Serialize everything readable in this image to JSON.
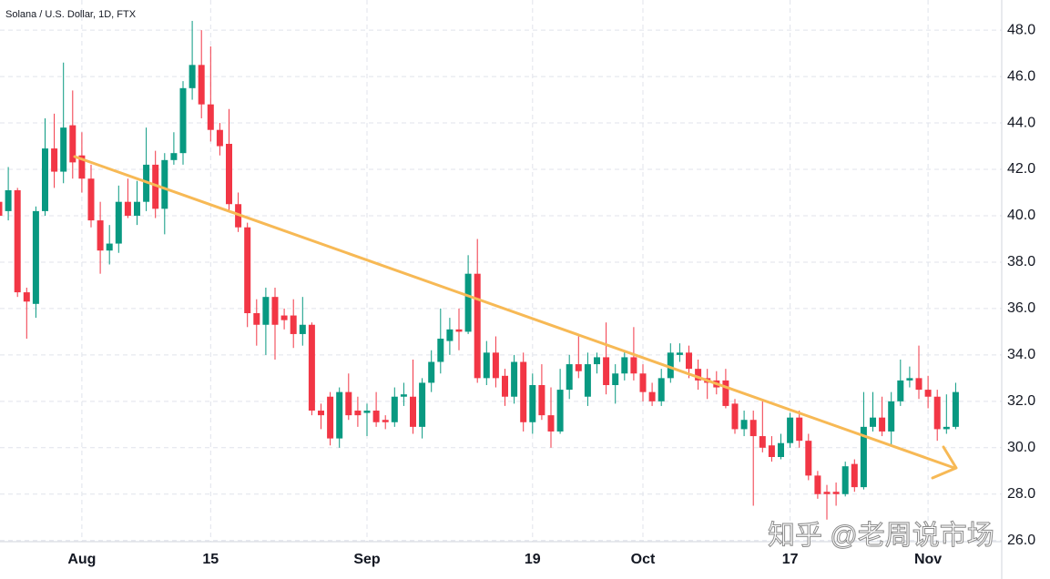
{
  "chart_data": {
    "type": "candlestick",
    "title": "Solana / U.S. Dollar, 1D, FTX",
    "watermark": "知乎 @老周说市场",
    "categories": [
      null,
      null,
      null,
      null,
      null,
      null,
      null,
      null,
      null,
      "Aug",
      null,
      null,
      null,
      null,
      null,
      null,
      null,
      null,
      null,
      null,
      null,
      null,
      null,
      "15",
      null,
      null,
      null,
      null,
      null,
      null,
      null,
      null,
      null,
      null,
      null,
      null,
      null,
      null,
      null,
      null,
      "Sep",
      null,
      null,
      null,
      null,
      null,
      null,
      null,
      null,
      null,
      null,
      null,
      null,
      null,
      null,
      null,
      null,
      null,
      "19",
      null,
      null,
      null,
      null,
      null,
      null,
      null,
      null,
      null,
      null,
      null,
      "Oct",
      null,
      null,
      null,
      null,
      null,
      null,
      null,
      null,
      null,
      null,
      null,
      null,
      null,
      null,
      null,
      "17",
      null,
      null,
      null,
      null,
      null,
      null,
      null,
      null,
      null,
      null,
      null,
      null,
      null,
      null,
      "Nov",
      null,
      null,
      null
    ],
    "ohlc": {
      "open": [
        40.6,
        40.2,
        41.1,
        36.7,
        36.2,
        40.2,
        42.9,
        41.9,
        43.9,
        42.6,
        41.6,
        39.8,
        38.5,
        38.8,
        40.6,
        40.0,
        40.6,
        42.2,
        40.3,
        42.4,
        42.7,
        45.5,
        46.5,
        44.8,
        43.7,
        43.1,
        40.5,
        39.5,
        35.8,
        35.3,
        36.5,
        35.7,
        35.7,
        34.9,
        35.3,
        31.6,
        32.2,
        30.4,
        32.4,
        31.6,
        31.5,
        31.6,
        31.2,
        31.1,
        32.2,
        32.2,
        30.9,
        32.8,
        33.7,
        34.6,
        35.1,
        35.0,
        37.5,
        33.0,
        34.1,
        33.1,
        32.2,
        33.7,
        31.1,
        32.7,
        31.4,
        30.7,
        32.5,
        33.6,
        32.2,
        33.6,
        33.9,
        32.7,
        33.2,
        33.9,
        33.2,
        32.4,
        32.0,
        33.0,
        34.0,
        34.1,
        33.4,
        33.0,
        32.9,
        32.9,
        31.9,
        30.8,
        31.2,
        30.5,
        30.1,
        29.6,
        30.2,
        31.3,
        30.3,
        28.8,
        28.1,
        28.1,
        28.0,
        29.3,
        28.3,
        30.9,
        31.3,
        30.7,
        32.0,
        32.9,
        33.0,
        32.5,
        32.2,
        30.8,
        30.9
      ],
      "high": [
        41.0,
        42.1,
        41.2,
        36.9,
        40.4,
        44.2,
        44.4,
        46.6,
        45.4,
        43.6,
        42.2,
        40.6,
        39.6,
        41.3,
        41.6,
        41.5,
        43.8,
        42.8,
        42.7,
        43.6,
        45.8,
        48.4,
        48.0,
        47.3,
        44.0,
        44.6,
        41.0,
        39.7,
        36.4,
        36.9,
        36.9,
        36.0,
        36.4,
        36.5,
        35.4,
        31.9,
        32.4,
        32.6,
        33.2,
        32.2,
        31.9,
        32.4,
        31.4,
        32.6,
        32.8,
        33.8,
        33.0,
        34.2,
        36.0,
        35.6,
        36.0,
        38.3,
        39.0,
        34.6,
        34.8,
        33.4,
        34.0,
        34.1,
        33.2,
        33.6,
        32.6,
        33.4,
        34.0,
        34.8,
        34.1,
        34.1,
        35.4,
        33.6,
        34.2,
        35.2,
        33.6,
        32.8,
        33.4,
        34.5,
        34.5,
        34.4,
        33.8,
        33.4,
        33.3,
        33.4,
        32.1,
        31.6,
        31.6,
        32.0,
        30.5,
        30.6,
        31.5,
        31.6,
        30.6,
        29.0,
        28.4,
        28.5,
        29.4,
        29.5,
        32.4,
        32.4,
        32.2,
        32.4,
        33.8,
        33.5,
        34.4,
        33.1,
        32.5,
        32.3,
        32.8
      ],
      "low": [
        40.0,
        39.8,
        36.5,
        34.7,
        35.6,
        40.0,
        41.2,
        41.4,
        41.6,
        41.0,
        39.5,
        37.5,
        37.9,
        38.4,
        39.9,
        39.6,
        40.2,
        39.9,
        39.2,
        42.2,
        42.2,
        45.0,
        44.2,
        43.2,
        42.6,
        40.2,
        39.3,
        35.2,
        34.4,
        34.0,
        33.8,
        35.1,
        34.3,
        34.4,
        31.4,
        30.8,
        30.1,
        30.0,
        31.2,
        30.9,
        30.5,
        30.9,
        30.8,
        30.9,
        31.8,
        30.6,
        30.4,
        32.4,
        33.2,
        34.0,
        34.2,
        34.9,
        32.8,
        32.7,
        32.6,
        31.8,
        31.9,
        30.7,
        30.6,
        31.2,
        30.0,
        30.6,
        32.1,
        33.0,
        31.8,
        33.2,
        32.3,
        31.9,
        32.9,
        32.9,
        32.0,
        31.8,
        31.8,
        32.8,
        33.7,
        33.0,
        32.5,
        32.1,
        32.3,
        31.7,
        30.6,
        30.5,
        27.5,
        29.8,
        29.4,
        29.5,
        30.0,
        30.0,
        28.6,
        27.8,
        26.9,
        27.5,
        27.9,
        28.1,
        28.2,
        30.7,
        30.5,
        30.1,
        31.8,
        32.6,
        32.1,
        31.7,
        30.3,
        30.6,
        30.8
      ],
      "close": [
        40.0,
        41.1,
        36.7,
        36.3,
        40.2,
        42.9,
        41.9,
        43.8,
        42.3,
        41.6,
        39.8,
        38.5,
        38.8,
        40.6,
        40.0,
        40.6,
        42.2,
        40.3,
        42.4,
        42.7,
        45.5,
        46.5,
        44.8,
        43.7,
        43.0,
        40.5,
        39.5,
        35.8,
        35.3,
        36.5,
        35.3,
        35.5,
        34.9,
        35.3,
        31.6,
        31.4,
        30.4,
        32.4,
        31.4,
        31.4,
        31.6,
        31.1,
        31.1,
        32.2,
        32.3,
        30.9,
        32.8,
        33.7,
        34.7,
        35.1,
        35.0,
        37.5,
        33.0,
        34.1,
        33.0,
        32.2,
        33.7,
        31.1,
        32.7,
        31.4,
        30.7,
        32.5,
        33.6,
        33.3,
        33.6,
        33.9,
        32.7,
        33.2,
        33.9,
        33.2,
        32.4,
        32.0,
        33.0,
        34.1,
        34.1,
        33.4,
        32.9,
        32.8,
        32.6,
        31.8,
        30.8,
        31.2,
        30.5,
        30.0,
        29.6,
        30.2,
        31.3,
        30.3,
        28.8,
        28.0,
        28.0,
        28.0,
        29.2,
        28.3,
        30.9,
        31.3,
        30.7,
        32.0,
        32.9,
        33.0,
        32.5,
        32.2,
        30.8,
        30.9,
        32.4
      ]
    },
    "up_color": "#089981",
    "down_color": "#f23645",
    "ylim": [
      25.95,
      49.3
    ],
    "yticks": [
      {
        "value": 26,
        "label": "26.0"
      },
      {
        "value": 28,
        "label": "28.0"
      },
      {
        "value": 30,
        "label": "30.0"
      },
      {
        "value": 32,
        "label": "32.0"
      },
      {
        "value": 34,
        "label": "34.0"
      },
      {
        "value": 36,
        "label": "36.0"
      },
      {
        "value": 38,
        "label": "38.0"
      },
      {
        "value": 40,
        "label": "40.0"
      },
      {
        "value": 42,
        "label": "42.0"
      },
      {
        "value": 44,
        "label": "44.0"
      },
      {
        "value": 46,
        "label": "46.0"
      },
      {
        "value": 48,
        "label": "48.0"
      }
    ],
    "grid": true
  }
}
